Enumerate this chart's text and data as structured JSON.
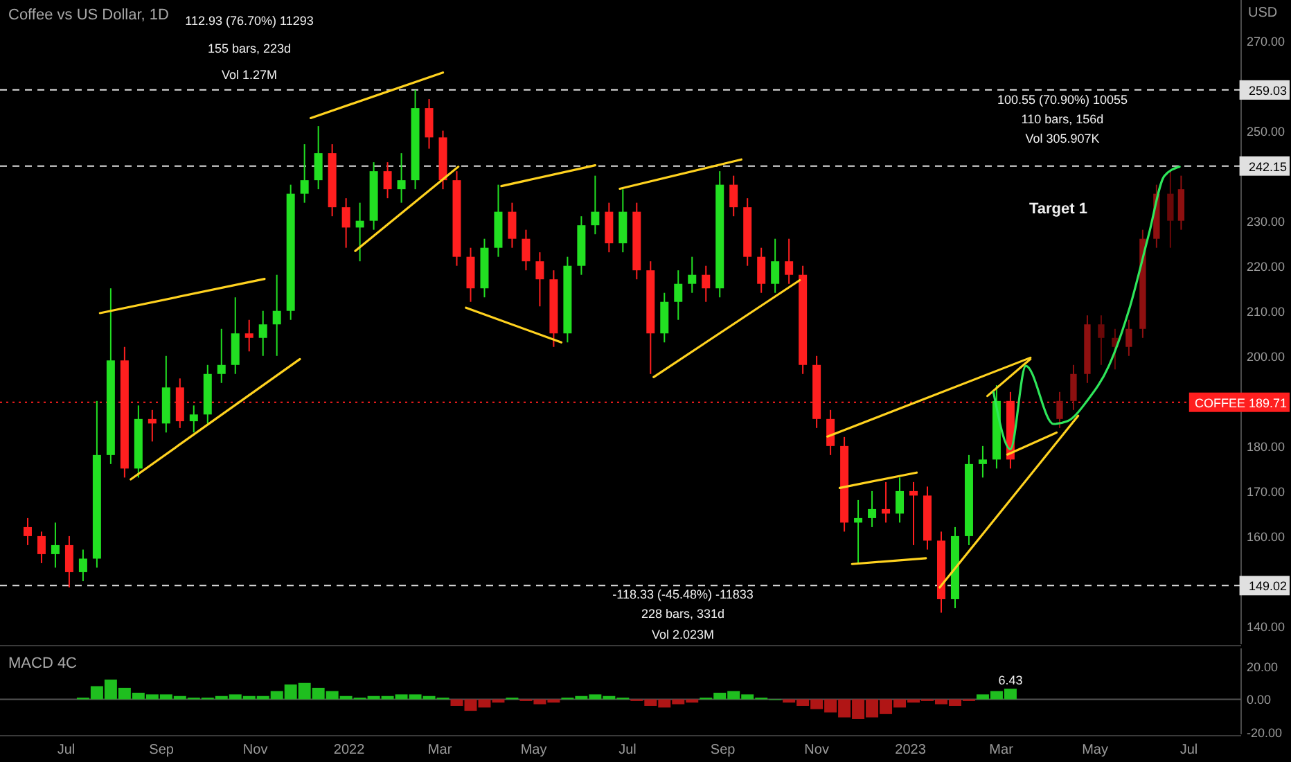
{
  "chart_data": [
    {
      "type": "candlestick",
      "title": "Coffee vs US Dollar, 1D",
      "ylabel": "USD",
      "xlim": [
        "2021-05-19",
        "2023-08-04"
      ],
      "ylim": [
        136,
        279
      ],
      "yticks": [
        {
          "value": 140,
          "label": "140.00"
        },
        {
          "value": 160,
          "label": "160.00"
        },
        {
          "value": 170,
          "label": "170.00"
        },
        {
          "value": 180,
          "label": "180.00"
        },
        {
          "value": 200,
          "label": "200.00"
        },
        {
          "value": 210,
          "label": "210.00"
        },
        {
          "value": 220,
          "label": "220.00"
        },
        {
          "value": 230,
          "label": "230.00"
        },
        {
          "value": 250,
          "label": "250.00"
        },
        {
          "value": 270,
          "label": "270.00"
        }
      ],
      "tick_labels": "y",
      "series": [
        {
          "x": [
            "2021-06-06",
            "2021-06-15",
            "2021-06-24",
            "2021-07-03",
            "2021-07-12",
            "2021-07-21",
            "2021-07-30",
            "2021-08-08",
            "2021-08-17",
            "2021-08-26",
            "2021-09-04",
            "2021-09-13",
            "2021-09-22",
            "2021-10-01",
            "2021-10-10",
            "2021-10-19",
            "2021-10-28",
            "2021-11-06",
            "2021-11-15",
            "2021-11-24",
            "2021-12-03",
            "2021-12-12",
            "2021-12-21",
            "2021-12-30",
            "2022-01-08",
            "2022-01-17",
            "2022-01-26",
            "2022-02-04",
            "2022-02-13",
            "2022-02-22",
            "2022-03-03",
            "2022-03-12",
            "2022-03-21",
            "2022-03-30",
            "2022-04-08",
            "2022-04-17",
            "2022-04-26",
            "2022-05-05",
            "2022-05-14",
            "2022-05-23",
            "2022-06-01",
            "2022-06-10",
            "2022-06-19",
            "2022-06-28",
            "2022-07-07",
            "2022-07-16",
            "2022-07-25",
            "2022-08-03",
            "2022-08-12",
            "2022-08-21",
            "2022-08-30",
            "2022-09-08",
            "2022-09-17",
            "2022-09-26",
            "2022-10-05",
            "2022-10-14",
            "2022-10-23",
            "2022-11-01",
            "2022-11-10",
            "2022-11-19",
            "2022-11-28",
            "2022-12-07",
            "2022-12-16",
            "2022-12-25",
            "2023-01-03",
            "2023-01-12",
            "2023-01-21",
            "2023-01-30",
            "2023-02-08",
            "2023-02-17",
            "2023-02-26",
            "2023-03-07"
          ],
          "ohlc": [
            [
              162,
              164,
              158,
              160
            ],
            [
              160,
              161,
              154,
              156
            ],
            [
              156,
              163,
              153,
              158
            ],
            [
              158,
              160,
              148.6,
              152
            ],
            [
              152,
              157,
              150,
              155
            ],
            [
              155,
              190,
              153,
              178
            ],
            [
              178,
              215,
              176,
              199
            ],
            [
              199,
              202,
              173,
              175
            ],
            [
              175,
              189,
              173,
              186
            ],
            [
              186,
              188,
              181,
              185
            ],
            [
              185,
              200,
              183,
              193
            ],
            [
              193,
              195,
              184,
              185.5
            ],
            [
              185.5,
              189,
              183,
              187
            ],
            [
              187,
              198,
              185,
              196
            ],
            [
              196,
              206,
              194,
              198
            ],
            [
              198,
              213,
              196,
              205
            ],
            [
              205,
              208,
              201,
              204
            ],
            [
              204,
              210,
              200,
              207
            ],
            [
              207,
              218,
              200,
              210
            ],
            [
              210,
              238,
              208,
              236
            ],
            [
              236,
              247,
              234,
              239
            ],
            [
              239,
              251,
              237,
              245
            ],
            [
              245,
              247,
              231,
              233
            ],
            [
              233,
              235,
              224,
              228.5
            ],
            [
              228.5,
              234,
              221,
              230
            ],
            [
              230,
              243,
              228,
              241
            ],
            [
              241,
              243,
              235,
              237
            ],
            [
              237,
              245,
              234,
              239
            ],
            [
              239,
              259.03,
              237,
              255
            ],
            [
              255,
              257,
              246,
              248.5
            ],
            [
              248.5,
              250,
              237,
              239
            ],
            [
              239,
              241,
              220,
              222
            ],
            [
              222,
              224,
              212,
              215
            ],
            [
              215,
              226,
              213,
              224
            ],
            [
              224,
              238,
              222,
              232
            ],
            [
              232,
              234,
              224,
              226
            ],
            [
              226,
              228,
              219,
              221
            ],
            [
              221,
              223,
              211,
              217
            ],
            [
              217,
              219,
              202,
              205
            ],
            [
              205,
              222,
              203,
              220
            ],
            [
              220,
              231,
              218,
              229
            ],
            [
              229,
              240,
              227,
              232
            ],
            [
              232,
              234,
              223,
              225
            ],
            [
              225,
              237,
              223,
              232
            ],
            [
              232,
              234,
              217,
              219
            ],
            [
              219,
              221,
              196,
              205
            ],
            [
              205,
              214,
              203,
              212
            ],
            [
              212,
              219,
              208,
              216
            ],
            [
              216,
              222,
              214,
              218
            ],
            [
              218,
              220,
              212,
              215
            ],
            [
              215,
              241,
              213,
              238
            ],
            [
              238,
              240,
              231,
              233
            ],
            [
              233,
              235,
              220,
              222
            ],
            [
              222,
              224,
              214,
              216
            ],
            [
              216,
              226,
              214,
              221
            ],
            [
              221,
              226,
              216,
              218
            ],
            [
              218,
              220,
              196,
              198
            ],
            [
              198,
              200,
              184,
              186
            ],
            [
              186,
              188,
              178,
              180
            ],
            [
              180,
              182,
              161,
              163
            ],
            [
              163,
              168,
              154,
              164
            ],
            [
              164,
              170,
              162,
              166
            ],
            [
              166,
              172,
              163,
              165
            ],
            [
              165,
              173,
              163,
              170
            ],
            [
              170,
              172,
              158,
              169
            ],
            [
              169,
              171,
              157,
              159
            ],
            [
              159,
              161,
              143,
              146
            ],
            [
              146,
              162,
              144,
              160
            ],
            [
              160,
              178,
              158,
              176
            ],
            [
              176,
              180,
              173,
              177
            ],
            [
              177,
              193.5,
              175,
              190
            ],
            [
              190,
              192,
              175,
              177
            ]
          ],
          "colors": [
            "#ff1f1f",
            "#ff1f1f",
            "#22e022",
            "#ff1f1f",
            "#22e022",
            "#22e022",
            "#22e022",
            "#ff1f1f",
            "#22e022",
            "#ff1f1f",
            "#22e022",
            "#ff1f1f",
            "#22e022",
            "#22e022",
            "#22e022",
            "#22e022",
            "#ff1f1f",
            "#22e022",
            "#22e022",
            "#22e022",
            "#22e022",
            "#22e022",
            "#ff1f1f",
            "#ff1f1f",
            "#22e022",
            "#22e022",
            "#ff1f1f",
            "#22e022",
            "#22e022",
            "#ff1f1f",
            "#ff1f1f",
            "#ff1f1f",
            "#ff1f1f",
            "#22e022",
            "#22e022",
            "#ff1f1f",
            "#ff1f1f",
            "#ff1f1f",
            "#ff1f1f",
            "#22e022",
            "#22e022",
            "#22e022",
            "#ff1f1f",
            "#22e022",
            "#ff1f1f",
            "#ff1f1f",
            "#22e022",
            "#22e022",
            "#22e022",
            "#ff1f1f",
            "#22e022",
            "#ff1f1f",
            "#ff1f1f",
            "#ff1f1f",
            "#22e022",
            "#ff1f1f",
            "#ff1f1f",
            "#ff1f1f",
            "#ff1f1f",
            "#ff1f1f",
            "#22e022",
            "#22e022",
            "#ff1f1f",
            "#22e022",
            "#ff1f1f",
            "#ff1f1f",
            "#ff1f1f",
            "#22e022",
            "#22e022",
            "#22e022",
            "#22e022",
            "#ff1f1f"
          ]
        },
        {
          "colors": [
            "#8e1010",
            "#8e1010",
            "#8e1010",
            "#6a0808",
            "#6a0808",
            "#8e1010",
            "#8e1010",
            "#8e1010",
            "#6a0808",
            "#8e1010"
          ],
          "x": [
            "2023-04-08",
            "2023-04-17",
            "2023-04-26",
            "2023-05-05",
            "2023-05-14",
            "2023-05-23",
            "2023-06-01",
            "2023-06-10",
            "2023-06-19",
            "2023-06-26"
          ],
          "ohlc": [
            [
              186,
              192,
              184,
              190
            ],
            [
              190,
              198,
              188,
              196
            ],
            [
              196,
              209,
              194,
              207
            ],
            [
              207,
              209,
              198,
              204
            ],
            [
              204,
              206,
              197,
              202
            ],
            [
              202,
              208,
              200,
              206
            ],
            [
              206,
              228,
              204,
              226
            ],
            [
              226,
              238,
              224,
              236
            ],
            [
              236,
              241,
              224,
              230
            ],
            [
              230,
              240,
              228,
              237
            ]
          ]
        },
        {
          "type": "line",
          "color": "#ffd21f",
          "x": [
            "2021-07-23",
            "2021-11-07"
          ],
          "values": [
            209.5,
            217.1
          ]
        },
        {
          "type": "line",
          "color": "#ffd21f",
          "x": [
            "2021-08-12",
            "2021-11-30"
          ],
          "values": [
            172.6,
            199.3
          ]
        },
        {
          "type": "line",
          "color": "#ffd21f",
          "x": [
            "2021-12-07",
            "2022-03-03"
          ],
          "values": [
            252.8,
            262.9
          ]
        },
        {
          "type": "line",
          "color": "#ffd21f",
          "x": [
            "2022-01-05",
            "2022-03-13"
          ],
          "values": [
            223.3,
            242.0
          ]
        },
        {
          "type": "line",
          "color": "#ffd21f",
          "x": [
            "2022-04-10",
            "2022-06-10"
          ],
          "values": [
            237.7,
            242.3
          ]
        },
        {
          "type": "line",
          "color": "#ffd21f",
          "x": [
            "2022-03-18",
            "2022-05-19"
          ],
          "values": [
            210.7,
            203.0
          ]
        },
        {
          "type": "line",
          "color": "#ffd21f",
          "x": [
            "2022-06-26",
            "2022-09-13"
          ],
          "values": [
            237.1,
            243.6
          ]
        },
        {
          "type": "line",
          "color": "#ffd21f",
          "x": [
            "2022-07-18",
            "2022-10-21"
          ],
          "values": [
            195.3,
            216.8
          ]
        },
        {
          "type": "line",
          "color": "#ffd21f",
          "x": [
            "2022-11-08",
            "2023-03-20"
          ],
          "values": [
            182.1,
            199.6
          ]
        },
        {
          "type": "line",
          "color": "#ffd21f",
          "x": [
            "2022-11-16",
            "2023-01-05"
          ],
          "values": [
            170.7,
            174.1
          ]
        },
        {
          "type": "line",
          "color": "#ffd21f",
          "x": [
            "2022-11-24",
            "2023-01-11"
          ],
          "values": [
            153.8,
            155.1
          ]
        },
        {
          "type": "line",
          "color": "#ffd21f",
          "x": [
            "2023-01-20",
            "2023-04-20"
          ],
          "values": [
            148.6,
            186.7
          ]
        },
        {
          "type": "line",
          "color": "#ffd21f",
          "x": [
            "2023-03-05",
            "2023-04-06"
          ],
          "values": [
            178.1,
            183.0
          ]
        },
        {
          "type": "line",
          "color": "#ffd21f",
          "x": [
            "2023-02-20",
            "2023-03-20"
          ],
          "values": [
            191.1,
            199.3
          ]
        },
        {
          "type": "line",
          "color": "#2ee65a",
          "x": [
            "2023-02-24",
            "2023-03-07",
            "2023-03-17",
            "2023-04-04",
            "2023-04-13",
            "2023-04-26",
            "2023-05-10",
            "2023-05-23",
            "2023-06-05",
            "2023-06-15",
            "2023-06-25"
          ],
          "values": [
            191.9,
            179.3,
            197.8,
            184.9,
            185.5,
            190.1,
            197.8,
            210.1,
            227.0,
            239.9,
            242
          ]
        }
      ],
      "ref_lines": [
        {
          "axis": "y",
          "value": 259.03,
          "label": "259.03",
          "color": "#e0e0e0",
          "line_style": "dashed"
        },
        {
          "axis": "y",
          "value": 242.15,
          "label": "242.15",
          "color": "#e0e0e0",
          "line_style": "dashed"
        },
        {
          "axis": "y",
          "value": 149.02,
          "label": "149.02",
          "color": "#e0e0e0",
          "line_style": "dashed"
        },
        {
          "axis": "y",
          "value": 189.71,
          "label": "COFFEE 189.71",
          "color": "#ff1f1f",
          "line_style": "dotted"
        }
      ],
      "annotations": [
        "112.93 (76.70%) 11293",
        "155 bars, 223d",
        "Vol 1.27M",
        "-118.33 (-45.48%) -11833",
        "228 bars, 331d",
        "Vol 2.023M",
        "100.55 (70.90%) 10055",
        "110 bars, 156d",
        "Vol 305.907K",
        "Target 1"
      ]
    },
    {
      "type": "bar",
      "title": "MACD 4C",
      "xlim": [
        "2021-05-19",
        "2023-08-04"
      ],
      "ylim": [
        -21.3,
        31
      ],
      "xticks": [
        {
          "value": "2021-07-01",
          "label": "Jul"
        },
        {
          "value": "2021-09-01",
          "label": "Sep"
        },
        {
          "value": "2021-11-01",
          "label": "Nov"
        },
        {
          "value": "2022-01-01",
          "label": "2022"
        },
        {
          "value": "2022-03-01",
          "label": "Mar"
        },
        {
          "value": "2022-05-01",
          "label": "May"
        },
        {
          "value": "2022-07-01",
          "label": "Jul"
        },
        {
          "value": "2022-09-01",
          "label": "Sep"
        },
        {
          "value": "2022-11-01",
          "label": "Nov"
        },
        {
          "value": "2023-01-01",
          "label": "2023"
        },
        {
          "value": "2023-03-01",
          "label": "Mar"
        },
        {
          "value": "2023-05-01",
          "label": "May"
        },
        {
          "value": "2023-07-01",
          "label": "Jul"
        }
      ],
      "yticks": [
        {
          "value": 20,
          "label": "20.00"
        },
        {
          "value": 0,
          "label": "0.00"
        },
        {
          "value": -20,
          "label": "-20.00"
        }
      ],
      "x": [
        "2021-07-12",
        "2021-07-21",
        "2021-07-30",
        "2021-08-08",
        "2021-08-17",
        "2021-08-26",
        "2021-09-04",
        "2021-09-13",
        "2021-09-22",
        "2021-10-01",
        "2021-10-10",
        "2021-10-19",
        "2021-10-28",
        "2021-11-06",
        "2021-11-15",
        "2021-11-24",
        "2021-12-03",
        "2021-12-12",
        "2021-12-21",
        "2021-12-30",
        "2022-01-08",
        "2022-01-17",
        "2022-01-26",
        "2022-02-04",
        "2022-02-13",
        "2022-02-22",
        "2022-03-03",
        "2022-03-12",
        "2022-03-21",
        "2022-03-30",
        "2022-04-08",
        "2022-04-17",
        "2022-04-26",
        "2022-05-05",
        "2022-05-14",
        "2022-05-23",
        "2022-06-01",
        "2022-06-10",
        "2022-06-19",
        "2022-06-28",
        "2022-07-07",
        "2022-07-16",
        "2022-07-25",
        "2022-08-03",
        "2022-08-12",
        "2022-08-21",
        "2022-08-30",
        "2022-09-08",
        "2022-09-17",
        "2022-09-26",
        "2022-10-05",
        "2022-10-14",
        "2022-10-23",
        "2022-11-01",
        "2022-11-10",
        "2022-11-19",
        "2022-11-28",
        "2022-12-07",
        "2022-12-16",
        "2022-12-25",
        "2023-01-03",
        "2023-01-12",
        "2023-01-21",
        "2023-01-30",
        "2023-02-08",
        "2023-02-17",
        "2023-02-26",
        "2023-03-07"
      ],
      "values": [
        1,
        8,
        12,
        7,
        4,
        3,
        3,
        2,
        1,
        1,
        2,
        3,
        2,
        2,
        5,
        9,
        10,
        7,
        5,
        2,
        1,
        2,
        2,
        3,
        3,
        2,
        1,
        -4,
        -7,
        -5,
        -2,
        1,
        -1,
        -3,
        -2,
        1,
        2,
        3,
        2,
        1,
        -1,
        -4,
        -5,
        -3,
        -2,
        1,
        4,
        5,
        3,
        1,
        0,
        -2,
        -4,
        -6,
        -8,
        -11,
        -12,
        -11,
        -9,
        -5,
        -2,
        -1,
        -3,
        -4,
        -1,
        3,
        5,
        6.43
      ],
      "colors": [
        "#1fbf1f",
        "#1fbf1f",
        "#1fbf1f",
        "#1fbf1f",
        "#1fbf1f",
        "#1fbf1f",
        "#1fbf1f",
        "#1fbf1f",
        "#1fbf1f",
        "#1fbf1f",
        "#1fbf1f",
        "#1fbf1f",
        "#1fbf1f",
        "#1fbf1f",
        "#1fbf1f",
        "#1fbf1f",
        "#1fbf1f",
        "#1fbf1f",
        "#1fbf1f",
        "#1fbf1f",
        "#1fbf1f",
        "#1fbf1f",
        "#1fbf1f",
        "#1fbf1f",
        "#1fbf1f",
        "#1fbf1f",
        "#1fbf1f",
        "#b01515",
        "#b01515",
        "#b01515",
        "#b01515",
        "#1fbf1f",
        "#b01515",
        "#b01515",
        "#b01515",
        "#1fbf1f",
        "#1fbf1f",
        "#1fbf1f",
        "#1fbf1f",
        "#1fbf1f",
        "#b01515",
        "#b01515",
        "#b01515",
        "#b01515",
        "#b01515",
        "#1fbf1f",
        "#1fbf1f",
        "#1fbf1f",
        "#1fbf1f",
        "#1fbf1f",
        "#1fbf1f",
        "#b01515",
        "#b01515",
        "#b01515",
        "#b01515",
        "#b01515",
        "#b01515",
        "#b01515",
        "#b01515",
        "#b01515",
        "#b01515",
        "#b01515",
        "#b01515",
        "#b01515",
        "#b01515",
        "#1fbf1f",
        "#1fbf1f",
        "#1fbf1f"
      ],
      "annotations": [
        {
          "text": "6.43",
          "x": "2023-03-07",
          "y": 6.43
        }
      ]
    }
  ]
}
